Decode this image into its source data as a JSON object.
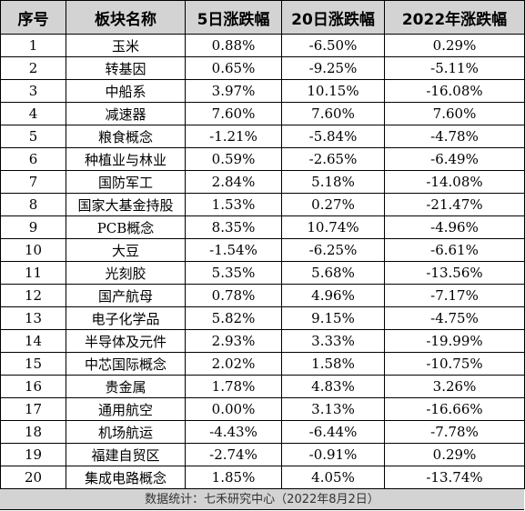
{
  "table": {
    "headers": [
      "序号",
      "板块名称",
      "5日涨跌幅",
      "20日涨跌幅",
      "2022年涨跌幅"
    ],
    "rows": [
      [
        "1",
        "玉米",
        "0.88%",
        "-6.50%",
        "0.29%"
      ],
      [
        "2",
        "转基因",
        "0.65%",
        "-9.25%",
        "-5.11%"
      ],
      [
        "3",
        "中船系",
        "3.97%",
        "10.15%",
        "-16.08%"
      ],
      [
        "4",
        "减速器",
        "7.60%",
        "7.60%",
        "7.60%"
      ],
      [
        "5",
        "粮食概念",
        "-1.21%",
        "-5.84%",
        "-4.78%"
      ],
      [
        "6",
        "种植业与林业",
        "0.59%",
        "-2.65%",
        "-6.49%"
      ],
      [
        "7",
        "国防军工",
        "2.84%",
        "5.18%",
        "-14.08%"
      ],
      [
        "8",
        "国家大基金持股",
        "1.53%",
        "0.27%",
        "-21.47%"
      ],
      [
        "9",
        "PCB概念",
        "8.35%",
        "10.74%",
        "-4.96%"
      ],
      [
        "10",
        "大豆",
        "-1.54%",
        "-6.25%",
        "-6.61%"
      ],
      [
        "11",
        "光刻胶",
        "5.35%",
        "5.68%",
        "-13.56%"
      ],
      [
        "12",
        "国产航母",
        "0.78%",
        "4.96%",
        "-7.17%"
      ],
      [
        "13",
        "电子化学品",
        "5.82%",
        "9.15%",
        "-4.75%"
      ],
      [
        "14",
        "半导体及元件",
        "2.93%",
        "3.33%",
        "-19.99%"
      ],
      [
        "15",
        "中芯国际概念",
        "2.02%",
        "1.58%",
        "-10.75%"
      ],
      [
        "16",
        "贵金属",
        "1.78%",
        "4.83%",
        "3.26%"
      ],
      [
        "17",
        "通用航空",
        "0.00%",
        "3.13%",
        "-16.66%"
      ],
      [
        "18",
        "机场航运",
        "-4.43%",
        "-6.44%",
        "-7.78%"
      ],
      [
        "19",
        "福建自贸区",
        "-2.74%",
        "-0.91%",
        "0.29%"
      ],
      [
        "20",
        "集成电路概念",
        "1.85%",
        "4.05%",
        "-13.74%"
      ]
    ]
  },
  "footer": {
    "source": "数据统计：七禾研究中心（2022年8月2日）"
  },
  "colors": {
    "header_bg": "#d3d3d3",
    "grid_line": "#000000"
  }
}
